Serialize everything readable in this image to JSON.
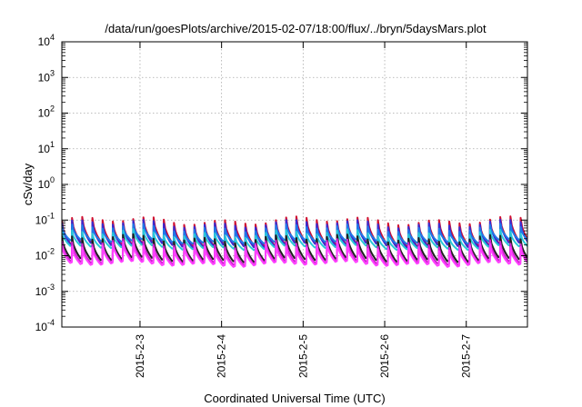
{
  "chart_data": {
    "type": "line",
    "title": "/data/run/goesPlots/archive/2015-02-07/18:00/flux/../bryn/5daysMars.plot",
    "xlabel": "Coordinated Universal Time (UTC)",
    "ylabel": "cSv/day",
    "yscale": "log",
    "ylim": [
      0.0001,
      10000
    ],
    "y_ticks": [
      {
        "base": "10",
        "exp": "-4"
      },
      {
        "base": "10",
        "exp": "-3"
      },
      {
        "base": "10",
        "exp": "-2"
      },
      {
        "base": "10",
        "exp": "-1"
      },
      {
        "base": "10",
        "exp": "0"
      },
      {
        "base": "10",
        "exp": "1"
      },
      {
        "base": "10",
        "exp": "2"
      },
      {
        "base": "10",
        "exp": "3"
      },
      {
        "base": "10",
        "exp": "4"
      }
    ],
    "xlim": [
      "2015-02-02T01:00",
      "2015-02-07T18:00"
    ],
    "x_ticks": [
      "2015-2-3",
      "2015-2-4",
      "2015-2-5",
      "2015-2-6",
      "2015-2-7"
    ],
    "grid": true,
    "legend": "none",
    "sawtooth_cycles_per_day": 8,
    "series": [
      {
        "color": "#d01030",
        "peak": 0.095,
        "trough": 0.022
      },
      {
        "color": "#3a2ad0",
        "peak": 0.078,
        "trough": 0.02
      },
      {
        "color": "#1f78e8",
        "peak": 0.06,
        "trough": 0.025
      },
      {
        "color": "#28c8d8",
        "peak": 0.042,
        "trough": 0.017
      },
      {
        "color": "#202020",
        "peak": 0.03,
        "trough": 0.0078
      },
      {
        "color": "#d020d0",
        "peak": 0.022,
        "trough": 0.0065
      },
      {
        "color": "#ff40ff",
        "peak": 0.018,
        "trough": 0.0058
      }
    ]
  }
}
